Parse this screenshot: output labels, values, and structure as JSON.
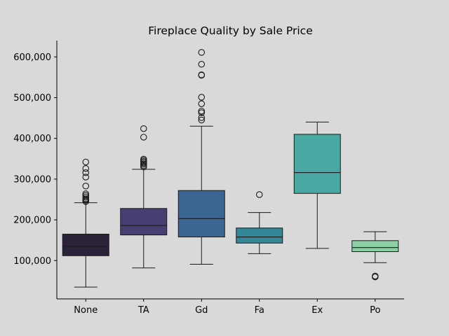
{
  "chart_data": {
    "type": "box",
    "title": "Fireplace Quality by Sale Price",
    "xlabel": "",
    "ylabel": "",
    "categories": [
      "None",
      "TA",
      "Gd",
      "Fa",
      "Ex",
      "Po"
    ],
    "y_ticks": [
      100000,
      200000,
      300000,
      400000,
      500000,
      600000
    ],
    "y_tick_labels": [
      "100,000",
      "200,000",
      "300,000",
      "400,000",
      "500,000",
      "600,000"
    ],
    "ylim": [
      6000,
      640000
    ],
    "grid": false,
    "legend": "none",
    "boxes": [
      {
        "category": "None",
        "q1": 112000,
        "median": 135000,
        "q3": 165000,
        "whisker_low": 35000,
        "whisker_high": 242000,
        "color": "#2b2139",
        "outliers": [
          245000,
          248000,
          250000,
          252000,
          256000,
          260000,
          264000,
          283000,
          305000,
          316000,
          326000,
          342000
        ]
      },
      {
        "category": "TA",
        "q1": 163000,
        "median": 186000,
        "q3": 228000,
        "whisker_low": 82000,
        "whisker_high": 324000,
        "color": "#463f71",
        "outliers": [
          330000,
          333000,
          337000,
          340000,
          343000,
          346000,
          349000,
          403000,
          424000
        ]
      },
      {
        "category": "Gd",
        "q1": 158000,
        "median": 203000,
        "q3": 272000,
        "whisker_low": 91000,
        "whisker_high": 430000,
        "color": "#3b6593",
        "outliers": [
          445000,
          451000,
          463000,
          467000,
          485000,
          501000,
          555000,
          556000,
          582000,
          611000
        ]
      },
      {
        "category": "Fa",
        "q1": 143000,
        "median": 158000,
        "q3": 180000,
        "whisker_low": 117000,
        "whisker_high": 218000,
        "color": "#348796",
        "outliers": [
          262000
        ]
      },
      {
        "category": "Ex",
        "q1": 265000,
        "median": 316000,
        "q3": 410000,
        "whisker_low": 130000,
        "whisker_high": 440000,
        "color": "#4aa8a2",
        "outliers": []
      },
      {
        "category": "Po",
        "q1": 122000,
        "median": 132000,
        "q3": 149000,
        "whisker_low": 95000,
        "whisker_high": 171000,
        "color": "#8ed0a6",
        "outliers": [
          60000,
          62000
        ]
      }
    ]
  }
}
